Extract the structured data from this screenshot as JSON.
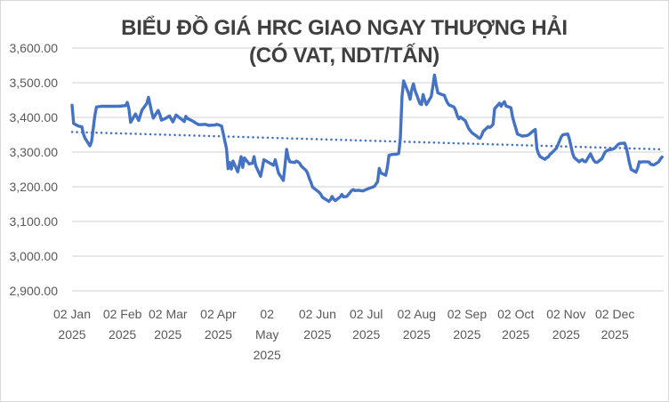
{
  "title": {
    "line1": "BIỂU ĐỒ GIÁ HRC GIAO NGAY THƯỢNG HẢI",
    "line2": "(CÓ VAT, NDT/TẤN)"
  },
  "colors": {
    "series": "#4472c4",
    "trendline": "#4472c4",
    "gridline": "#d9d9d9",
    "axis_text": "#595959",
    "title_text": "#3f3f3f",
    "border": "#d9d9d9",
    "background": "#ffffff"
  },
  "chart_data": {
    "type": "line",
    "title": "BIỂU ĐỒ GIÁ HRC GIAO NGAY THƯỢNG HẢI (CÓ VAT, NDT/TẤN)",
    "xlabel": "",
    "ylabel": "",
    "ylim": [
      2900,
      3600
    ],
    "grid": "horizontal",
    "legend": "none",
    "x_axis_span": [
      "2025-01-02",
      "2026-01-01"
    ],
    "yticks": [
      {
        "value": 3600,
        "label": "3,600.00"
      },
      {
        "value": 3500,
        "label": "3,500.00"
      },
      {
        "value": 3400,
        "label": "3,400.00"
      },
      {
        "value": 3300,
        "label": "3,300.00"
      },
      {
        "value": 3200,
        "label": "3,200.00"
      },
      {
        "value": 3100,
        "label": "3,100.00"
      },
      {
        "value": 3000,
        "label": "3,000.00"
      },
      {
        "value": 2900,
        "label": "2,900.00"
      }
    ],
    "xticks": [
      {
        "date": "2025-01-02",
        "lines": [
          "02 Jan",
          "2025"
        ]
      },
      {
        "date": "2025-02-02",
        "lines": [
          "02 Feb",
          "2025"
        ]
      },
      {
        "date": "2025-03-02",
        "lines": [
          "02 Mar",
          "2025"
        ]
      },
      {
        "date": "2025-04-02",
        "lines": [
          "02 Apr",
          "2025"
        ]
      },
      {
        "date": "2025-05-02",
        "lines": [
          "02",
          "May",
          "2025"
        ]
      },
      {
        "date": "2025-06-02",
        "lines": [
          "02 Jun",
          "2025"
        ]
      },
      {
        "date": "2025-07-02",
        "lines": [
          "02 Jul",
          "2025"
        ]
      },
      {
        "date": "2025-08-02",
        "lines": [
          "02 Aug",
          "2025"
        ]
      },
      {
        "date": "2025-09-02",
        "lines": [
          "02 Sep",
          "2025"
        ]
      },
      {
        "date": "2025-10-02",
        "lines": [
          "02 Oct",
          "2025"
        ]
      },
      {
        "date": "2025-11-02",
        "lines": [
          "02 Nov",
          "2025"
        ]
      },
      {
        "date": "2025-12-02",
        "lines": [
          "02 Dec",
          "2025"
        ]
      }
    ],
    "series": [
      {
        "name": "Giá HRC giao ngay Thượng Hải (có VAT, NDT/tấn)",
        "points": [
          [
            "01-02",
            3435
          ],
          [
            "01-03",
            3382
          ],
          [
            "01-06",
            3375
          ],
          [
            "01-08",
            3373
          ],
          [
            "01-09",
            3352
          ],
          [
            "01-10",
            3340
          ],
          [
            "01-13",
            3318
          ],
          [
            "01-14",
            3330
          ],
          [
            "01-15",
            3368
          ],
          [
            "01-16",
            3405
          ],
          [
            "01-17",
            3430
          ],
          [
            "01-20",
            3432
          ],
          [
            "01-24",
            3432
          ],
          [
            "01-28",
            3432
          ],
          [
            "01-31",
            3432
          ],
          [
            "02-04",
            3434
          ],
          [
            "02-05",
            3443
          ],
          [
            "02-06",
            3425
          ],
          [
            "02-07",
            3386
          ],
          [
            "02-10",
            3410
          ],
          [
            "02-12",
            3391
          ],
          [
            "02-14",
            3421
          ],
          [
            "02-17",
            3440
          ],
          [
            "02-18",
            3458
          ],
          [
            "02-19",
            3437
          ],
          [
            "02-20",
            3415
          ],
          [
            "02-21",
            3398
          ],
          [
            "02-24",
            3420
          ],
          [
            "02-25",
            3408
          ],
          [
            "02-26",
            3392
          ],
          [
            "02-28",
            3396
          ],
          [
            "03-03",
            3404
          ],
          [
            "03-05",
            3387
          ],
          [
            "03-07",
            3407
          ],
          [
            "03-10",
            3396
          ],
          [
            "03-12",
            3388
          ],
          [
            "03-13",
            3403
          ],
          [
            "03-14",
            3397
          ],
          [
            "03-17",
            3390
          ],
          [
            "03-19",
            3384
          ],
          [
            "03-21",
            3379
          ],
          [
            "03-25",
            3380
          ],
          [
            "03-27",
            3377
          ],
          [
            "03-31",
            3378
          ],
          [
            "04-01",
            3380
          ],
          [
            "04-03",
            3377
          ],
          [
            "04-04",
            3375
          ],
          [
            "04-07",
            3310
          ],
          [
            "04-08",
            3252
          ],
          [
            "04-09",
            3270
          ],
          [
            "04-10",
            3251
          ],
          [
            "04-11",
            3274
          ],
          [
            "04-14",
            3243
          ],
          [
            "04-15",
            3266
          ],
          [
            "04-16",
            3287
          ],
          [
            "04-17",
            3256
          ],
          [
            "04-18",
            3283
          ],
          [
            "04-21",
            3266
          ],
          [
            "04-23",
            3268
          ],
          [
            "04-24",
            3287
          ],
          [
            "04-25",
            3261
          ],
          [
            "04-28",
            3230
          ],
          [
            "04-29",
            3253
          ],
          [
            "04-30",
            3278
          ],
          [
            "05-06",
            3262
          ],
          [
            "05-07",
            3278
          ],
          [
            "05-09",
            3240
          ],
          [
            "05-12",
            3218
          ],
          [
            "05-13",
            3260
          ],
          [
            "05-14",
            3308
          ],
          [
            "05-15",
            3284
          ],
          [
            "05-16",
            3272
          ],
          [
            "05-19",
            3270
          ],
          [
            "05-20",
            3274
          ],
          [
            "05-21",
            3272
          ],
          [
            "05-22",
            3268
          ],
          [
            "05-23",
            3260
          ],
          [
            "05-26",
            3247
          ],
          [
            "05-27",
            3238
          ],
          [
            "05-28",
            3224
          ],
          [
            "05-29",
            3212
          ],
          [
            "05-30",
            3199
          ],
          [
            "06-03",
            3184
          ],
          [
            "06-04",
            3179
          ],
          [
            "06-05",
            3170
          ],
          [
            "06-06",
            3167
          ],
          [
            "06-09",
            3158
          ],
          [
            "06-10",
            3163
          ],
          [
            "06-11",
            3172
          ],
          [
            "06-12",
            3164
          ],
          [
            "06-13",
            3160
          ],
          [
            "06-16",
            3171
          ],
          [
            "06-17",
            3178
          ],
          [
            "06-18",
            3171
          ],
          [
            "06-20",
            3172
          ],
          [
            "06-23",
            3189
          ],
          [
            "06-24",
            3192
          ],
          [
            "06-25",
            3189
          ],
          [
            "06-27",
            3190
          ],
          [
            "06-30",
            3188
          ],
          [
            "07-02",
            3192
          ],
          [
            "07-04",
            3196
          ],
          [
            "07-07",
            3201
          ],
          [
            "07-09",
            3215
          ],
          [
            "07-10",
            3253
          ],
          [
            "07-11",
            3240
          ],
          [
            "07-14",
            3233
          ],
          [
            "07-15",
            3256
          ],
          [
            "07-16",
            3291
          ],
          [
            "07-18",
            3293
          ],
          [
            "07-21",
            3294
          ],
          [
            "07-22",
            3296
          ],
          [
            "07-23",
            3340
          ],
          [
            "07-24",
            3460
          ],
          [
            "07-25",
            3505
          ],
          [
            "07-28",
            3470
          ],
          [
            "07-29",
            3452
          ],
          [
            "07-30",
            3480
          ],
          [
            "07-31",
            3497
          ],
          [
            "08-01",
            3478
          ],
          [
            "08-04",
            3440
          ],
          [
            "08-05",
            3437
          ],
          [
            "08-06",
            3466
          ],
          [
            "08-07",
            3450
          ],
          [
            "08-08",
            3437
          ],
          [
            "08-11",
            3460
          ],
          [
            "08-12",
            3490
          ],
          [
            "08-13",
            3522
          ],
          [
            "08-14",
            3495
          ],
          [
            "08-15",
            3471
          ],
          [
            "08-18",
            3465
          ],
          [
            "08-19",
            3464
          ],
          [
            "08-20",
            3452
          ],
          [
            "08-21",
            3442
          ],
          [
            "08-22",
            3436
          ],
          [
            "08-25",
            3430
          ],
          [
            "08-26",
            3420
          ],
          [
            "08-27",
            3405
          ],
          [
            "08-28",
            3396
          ],
          [
            "08-29",
            3401
          ],
          [
            "09-01",
            3390
          ],
          [
            "09-02",
            3379
          ],
          [
            "09-03",
            3368
          ],
          [
            "09-04",
            3362
          ],
          [
            "09-05",
            3356
          ],
          [
            "09-08",
            3346
          ],
          [
            "09-09",
            3341
          ],
          [
            "09-10",
            3340
          ],
          [
            "09-11",
            3348
          ],
          [
            "09-12",
            3360
          ],
          [
            "09-15",
            3373
          ],
          [
            "09-16",
            3371
          ],
          [
            "09-17",
            3374
          ],
          [
            "09-18",
            3380
          ],
          [
            "09-19",
            3425
          ],
          [
            "09-22",
            3441
          ],
          [
            "09-23",
            3432
          ],
          [
            "09-24",
            3440
          ],
          [
            "09-25",
            3445
          ],
          [
            "09-26",
            3433
          ],
          [
            "09-29",
            3428
          ],
          [
            "09-30",
            3402
          ],
          [
            "10-01",
            3385
          ],
          [
            "10-02",
            3369
          ],
          [
            "10-03",
            3352
          ],
          [
            "10-06",
            3346
          ],
          [
            "10-07",
            3347
          ],
          [
            "10-08",
            3347
          ],
          [
            "10-09",
            3348
          ],
          [
            "10-10",
            3350
          ],
          [
            "10-13",
            3362
          ],
          [
            "10-14",
            3365
          ],
          [
            "10-15",
            3310
          ],
          [
            "10-16",
            3295
          ],
          [
            "10-17",
            3287
          ],
          [
            "10-20",
            3279
          ],
          [
            "10-21",
            3284
          ],
          [
            "10-22",
            3286
          ],
          [
            "10-23",
            3293
          ],
          [
            "10-24",
            3297
          ],
          [
            "10-27",
            3311
          ],
          [
            "10-28",
            3322
          ],
          [
            "10-29",
            3333
          ],
          [
            "10-30",
            3344
          ],
          [
            "10-31",
            3350
          ],
          [
            "11-03",
            3352
          ],
          [
            "11-04",
            3338
          ],
          [
            "11-05",
            3316
          ],
          [
            "11-06",
            3296
          ],
          [
            "11-07",
            3284
          ],
          [
            "11-10",
            3272
          ],
          [
            "11-11",
            3276
          ],
          [
            "11-12",
            3278
          ],
          [
            "11-13",
            3273
          ],
          [
            "11-14",
            3272
          ],
          [
            "11-17",
            3295
          ],
          [
            "11-18",
            3285
          ],
          [
            "11-19",
            3276
          ],
          [
            "11-20",
            3271
          ],
          [
            "11-21",
            3270
          ],
          [
            "11-24",
            3281
          ],
          [
            "11-25",
            3291
          ],
          [
            "11-26",
            3300
          ],
          [
            "11-27",
            3304
          ],
          [
            "11-28",
            3306
          ],
          [
            "12-01",
            3309
          ],
          [
            "12-02",
            3312
          ],
          [
            "12-03",
            3317
          ],
          [
            "12-04",
            3322
          ],
          [
            "12-05",
            3325
          ],
          [
            "12-08",
            3326
          ],
          [
            "12-09",
            3312
          ],
          [
            "12-10",
            3291
          ],
          [
            "12-11",
            3268
          ],
          [
            "12-12",
            3250
          ],
          [
            "12-15",
            3242
          ],
          [
            "12-16",
            3254
          ],
          [
            "12-17",
            3272
          ],
          [
            "12-18",
            3271
          ],
          [
            "12-19",
            3272
          ],
          [
            "12-22",
            3272
          ],
          [
            "12-23",
            3271
          ],
          [
            "12-24",
            3265
          ],
          [
            "12-26",
            3263
          ],
          [
            "12-29",
            3272
          ],
          [
            "12-30",
            3280
          ],
          [
            "12-31",
            3286
          ]
        ]
      }
    ],
    "trendline": {
      "style": "dotted",
      "start_date": "2025-01-02",
      "end_date": "2025-12-31",
      "start_value": 3358,
      "end_value": 3308
    }
  }
}
